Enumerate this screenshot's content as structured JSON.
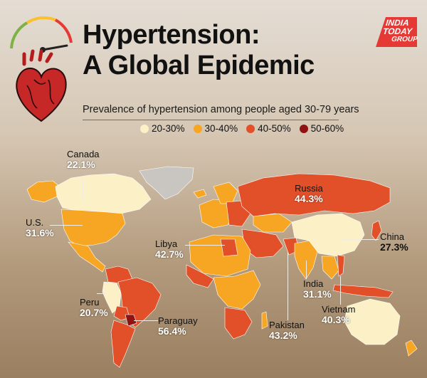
{
  "title_line1": "Hypertension:",
  "title_line2": "A Global Epidemic",
  "subtitle": "Prevalence of hypertension among people aged 30-79 years",
  "brand": {
    "line1": "INDIA",
    "line2": "TODAY",
    "line3": "GROUP"
  },
  "legend": [
    {
      "label": "20-30%",
      "color": "#fbf0c6"
    },
    {
      "label": "30-40%",
      "color": "#f6a623"
    },
    {
      "label": "40-50%",
      "color": "#e2502a"
    },
    {
      "label": "50-60%",
      "color": "#8f1313"
    }
  ],
  "map_colors": {
    "low": "#fbf0c6",
    "mid": "#f6a623",
    "high": "#e2502a",
    "top": "#8f1313",
    "nodata": "#c9c6c2"
  },
  "countries": [
    {
      "name": "Canada",
      "value": "22.1%"
    },
    {
      "name": "U.S.",
      "value": "31.6%"
    },
    {
      "name": "Peru",
      "value": "20.7%"
    },
    {
      "name": "Paraguay",
      "value": "56.4%"
    },
    {
      "name": "Libya",
      "value": "42.7%"
    },
    {
      "name": "Russia",
      "value": "44.3%"
    },
    {
      "name": "China",
      "value": "27.3%"
    },
    {
      "name": "India",
      "value": "31.1%"
    },
    {
      "name": "Pakistan",
      "value": "43.2%"
    },
    {
      "name": "Vietnam",
      "value": "40.3%"
    }
  ]
}
